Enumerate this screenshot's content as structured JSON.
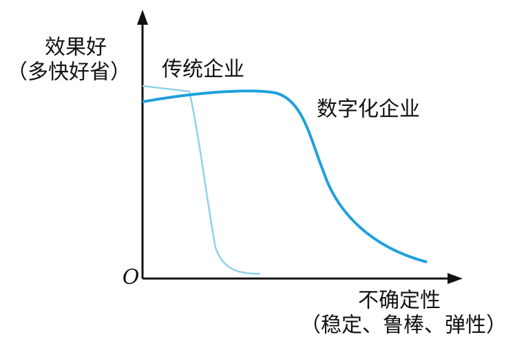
{
  "y_axis": {
    "label": "效果好",
    "sublabel": "（多快好省）"
  },
  "x_axis": {
    "label": "不确定性",
    "sublabel": "（稳定、鲁棒、弹性）"
  },
  "origin": "O",
  "curves": [
    {
      "label": "传统企业"
    },
    {
      "label": "数字化企业"
    }
  ]
}
